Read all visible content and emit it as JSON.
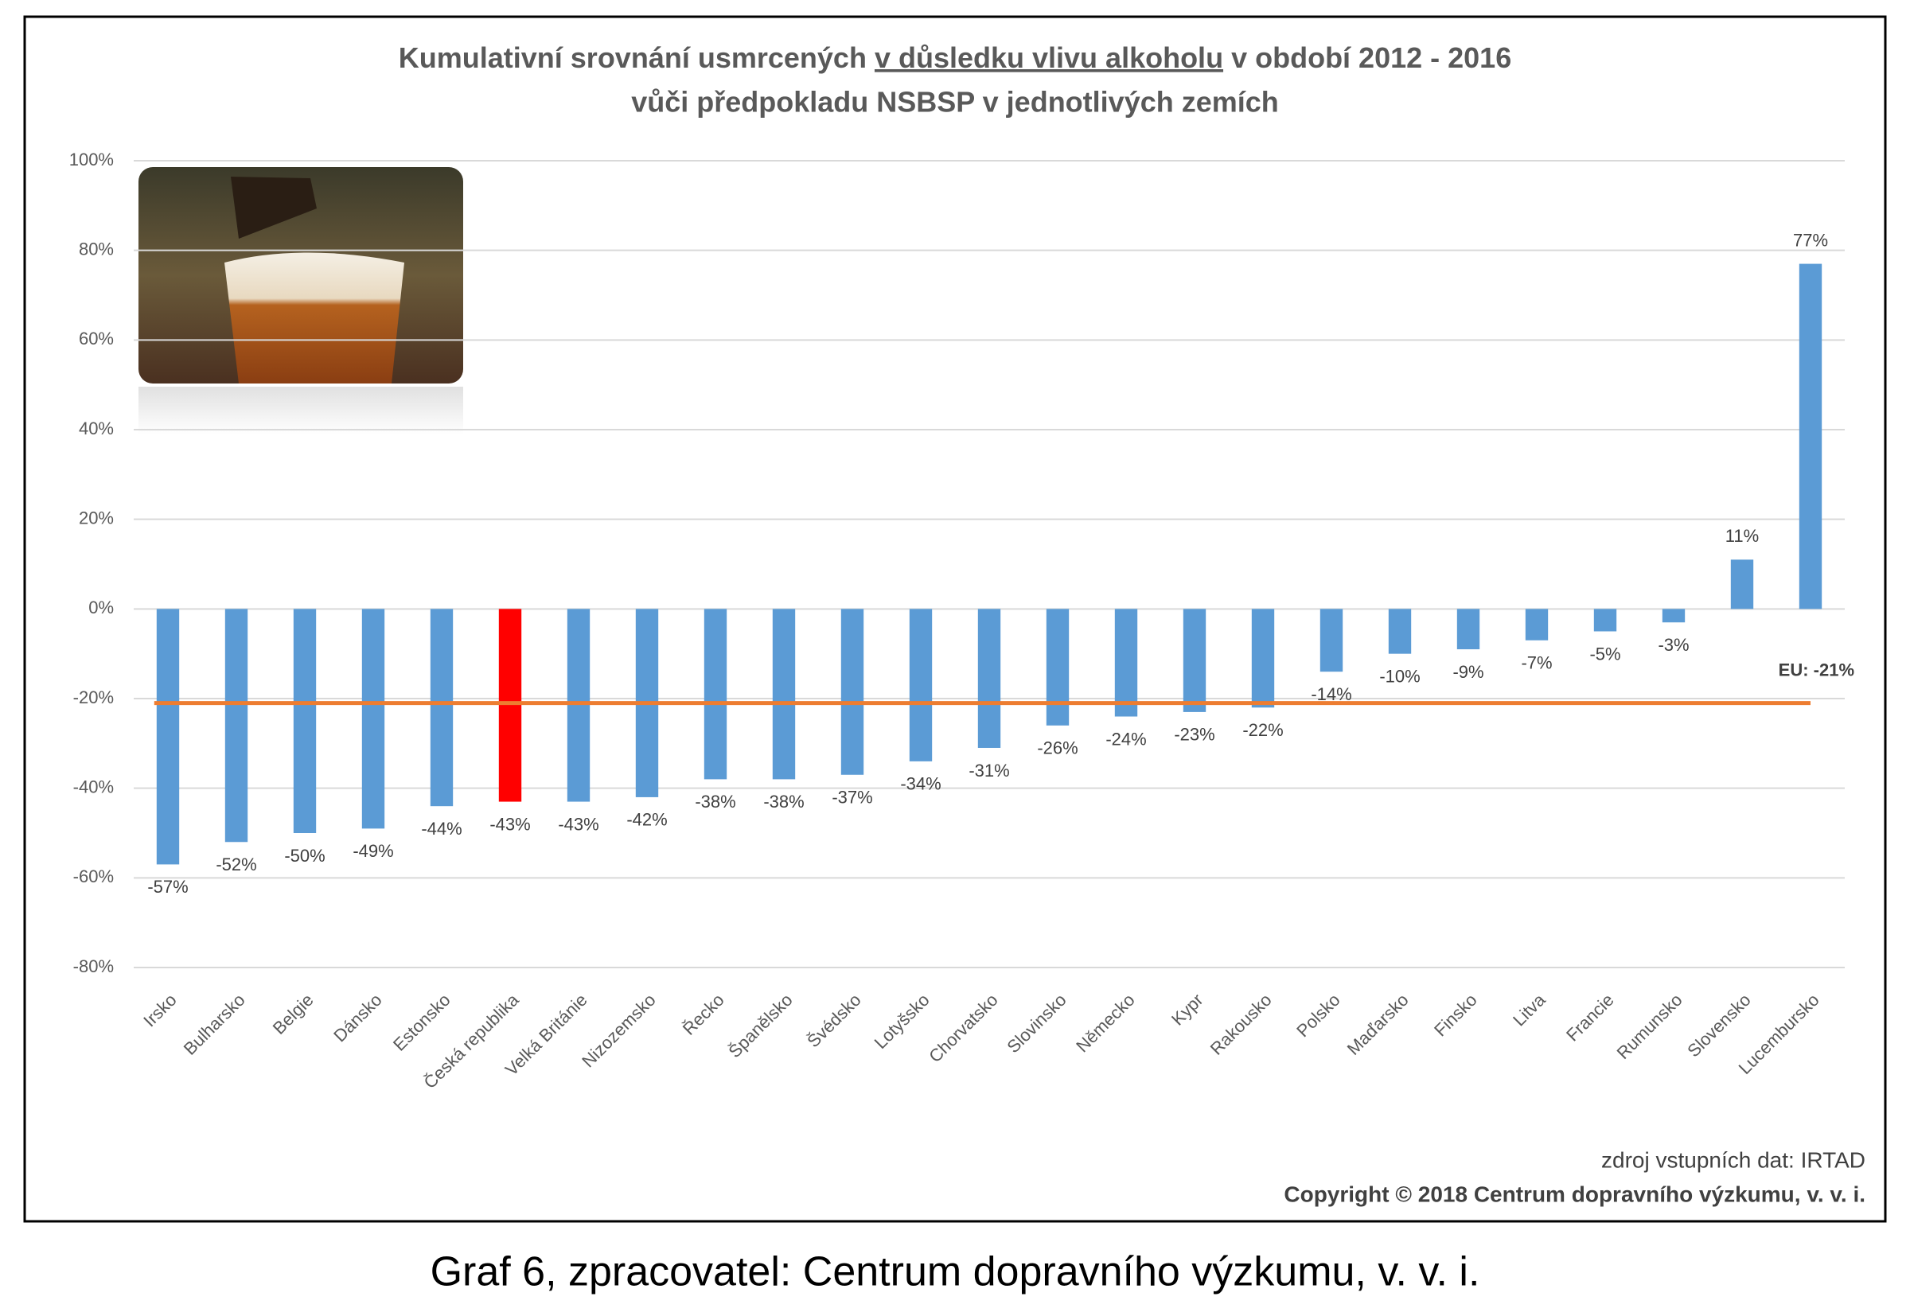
{
  "chart_data": {
    "type": "bar",
    "title": [
      "Kumulativní srovnání usmrcených",
      "v důsledku vlivu alkoholu",
      "v období 2012 - 2016"
    ],
    "subtitle": "vůči předpokladu NSBSP v jednotlivých zemích",
    "categories": [
      "Irsko",
      "Bulharsko",
      "Belgie",
      "Dánsko",
      "Estonsko",
      "Česká republika",
      "Velká Británie",
      "Nizozemsko",
      "Řecko",
      "Španělsko",
      "Švédsko",
      "Lotyšsko",
      "Chorvatsko",
      "Slovinsko",
      "Německo",
      "Kypr",
      "Rakousko",
      "Polsko",
      "Maďarsko",
      "Finsko",
      "Litva",
      "Francie",
      "Rumunsko",
      "Slovensko",
      "Lucembursko"
    ],
    "values": [
      -57,
      -52,
      -50,
      -49,
      -44,
      -43,
      -43,
      -42,
      -38,
      -38,
      -37,
      -34,
      -31,
      -26,
      -24,
      -23,
      -22,
      -14,
      -10,
      -9,
      -7,
      -5,
      -3,
      11,
      77
    ],
    "value_labels": [
      "-57%",
      "-52%",
      "-50%",
      "-49%",
      "-44%",
      "-43%",
      "-43%",
      "-42%",
      "-38%",
      "-38%",
      "-37%",
      "-34%",
      "-31%",
      "-26%",
      "-24%",
      "-23%",
      "-22%",
      "-14%",
      "-10%",
      "-9%",
      "-7%",
      "-5%",
      "-3%",
      "11%",
      "77%"
    ],
    "colors": [
      "#5b9bd5",
      "#5b9bd5",
      "#5b9bd5",
      "#5b9bd5",
      "#5b9bd5",
      "#ff0000",
      "#5b9bd5",
      "#5b9bd5",
      "#5b9bd5",
      "#5b9bd5",
      "#5b9bd5",
      "#5b9bd5",
      "#5b9bd5",
      "#5b9bd5",
      "#5b9bd5",
      "#5b9bd5",
      "#5b9bd5",
      "#5b9bd5",
      "#5b9bd5",
      "#5b9bd5",
      "#5b9bd5",
      "#5b9bd5",
      "#5b9bd5",
      "#5b9bd5",
      "#5b9bd5"
    ],
    "reference_line": {
      "value": -21,
      "label": "EU: -21%",
      "color": "#ed7d31"
    },
    "ylim": [
      -80,
      100
    ],
    "yticks": [
      {
        "value": -80,
        "label": "-80%"
      },
      {
        "value": -60,
        "label": "-60%"
      },
      {
        "value": -40,
        "label": "-40%"
      },
      {
        "value": -20,
        "label": "-20%"
      },
      {
        "value": 0,
        "label": "0%"
      },
      {
        "value": 20,
        "label": "20%"
      },
      {
        "value": 40,
        "label": "40%"
      },
      {
        "value": 60,
        "label": "60%"
      },
      {
        "value": 80,
        "label": "80%"
      },
      {
        "value": 100,
        "label": "100%"
      }
    ],
    "grid": true,
    "source": "zdroj vstupních dat: IRTAD",
    "copyright": "Copyright © 2018  Centrum dopravního výzkumu, v. v. i.",
    "caption": "Graf 6, zpracovatel: Centrum dopravního výzkumu, v. v. i."
  }
}
